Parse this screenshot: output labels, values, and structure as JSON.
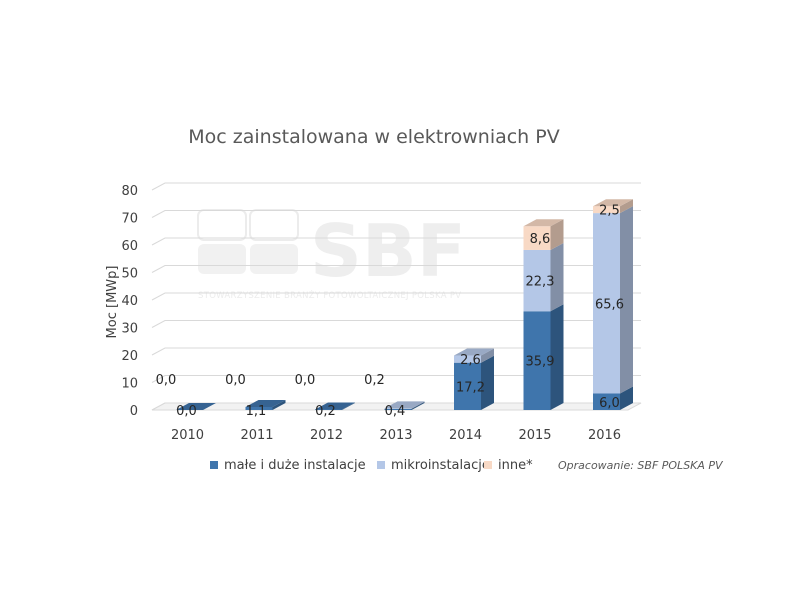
{
  "chart_data": {
    "type": "bar",
    "stacked": true,
    "style": "3d-columns",
    "title": "Moc zainstalowana w elektrowniach PV",
    "ylabel": "Moc [MWp]",
    "xlabel": "",
    "ylim": [
      0,
      80
    ],
    "yticks": [
      "0",
      "10",
      "20",
      "30",
      "40",
      "50",
      "60",
      "70",
      "80"
    ],
    "categories": [
      "2010",
      "2011",
      "2012",
      "2013",
      "2014",
      "2015",
      "2016"
    ],
    "series": [
      {
        "name": "małe i duże instalacje",
        "color": "#3f75ac",
        "values": [
          0.0,
          1.1,
          0.2,
          0.4,
          17.2,
          35.9,
          6.0
        ],
        "labels": [
          "0,0",
          "1,1",
          "0,2",
          "0,4",
          "17,2",
          "35,9",
          "6,0"
        ]
      },
      {
        "name": "mikroinstalacje",
        "color": "#b4c7e7",
        "values": [
          0.0,
          0.0,
          0.0,
          0.2,
          2.6,
          22.3,
          65.6
        ],
        "labels": [
          "0,0",
          "0,0",
          "0,0",
          "0,2",
          "2,6",
          "22,3",
          "65,6"
        ]
      },
      {
        "name": "inne*",
        "color": "#f8d9c5",
        "values": [
          0.0,
          0.0,
          0.0,
          0.0,
          0.0,
          8.6,
          2.5
        ],
        "labels": [
          "",
          "",
          "",
          "",
          "",
          "8,6",
          "2,5"
        ]
      }
    ],
    "grid": true,
    "legend_position": "bottom",
    "credit": "Opracowanie: SBF POLSKA PV"
  },
  "watermark": {
    "logo_text": "SBF",
    "subtitle": "STOWARZYSZENIE BRANŻY FOTOWOLTAICZNEJ POLSKA PV"
  }
}
